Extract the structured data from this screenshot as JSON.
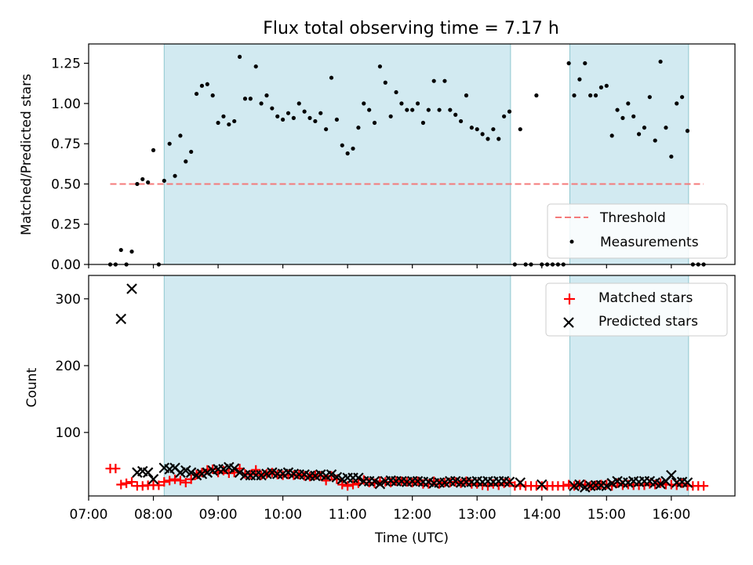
{
  "title": "Flux total observing time = 7.17 h",
  "colors": {
    "threshold": "#f47a7a",
    "shade": "#add8e6",
    "matched": "#ff0000",
    "predicted": "#000000",
    "measurement": "#000000"
  },
  "chart_data": [
    {
      "type": "scatter",
      "panel": "top",
      "ylabel": "Matched/Predicted stars",
      "ylim": [
        0,
        1.37
      ],
      "yticks": [
        "0.00",
        "0.25",
        "0.50",
        "0.75",
        "1.00",
        "1.25"
      ],
      "ytick_values": [
        0,
        0.25,
        0.5,
        0.75,
        1.0,
        1.25
      ],
      "xlim": [
        "07:00",
        "16:59"
      ],
      "shaded_intervals": [
        [
          "08:10",
          "13:31"
        ],
        [
          "14:26",
          "16:16"
        ]
      ],
      "legend": {
        "placement": "lower-right",
        "entries": [
          "Threshold",
          "Measurements"
        ]
      },
      "threshold": {
        "name": "Threshold",
        "value": 0.5,
        "x": [
          "07:20",
          "16:30"
        ]
      },
      "measurements": {
        "name": "Measurements",
        "x": [
          "07:20",
          "07:25",
          "07:30",
          "07:35",
          "07:40",
          "07:45",
          "07:50",
          "07:55",
          "08:00",
          "08:05",
          "08:10",
          "08:15",
          "08:20",
          "08:25",
          "08:30",
          "08:35",
          "08:40",
          "08:45",
          "08:50",
          "08:55",
          "09:00",
          "09:05",
          "09:10",
          "09:15",
          "09:20",
          "09:25",
          "09:30",
          "09:35",
          "09:40",
          "09:45",
          "09:50",
          "09:55",
          "10:00",
          "10:05",
          "10:10",
          "10:15",
          "10:20",
          "10:25",
          "10:30",
          "10:35",
          "10:40",
          "10:45",
          "10:50",
          "10:55",
          "11:00",
          "11:05",
          "11:10",
          "11:15",
          "11:20",
          "11:25",
          "11:30",
          "11:35",
          "11:40",
          "11:45",
          "11:50",
          "11:55",
          "12:00",
          "12:05",
          "12:10",
          "12:15",
          "12:20",
          "12:25",
          "12:30",
          "12:35",
          "12:40",
          "12:45",
          "12:50",
          "12:55",
          "13:00",
          "13:05",
          "13:10",
          "13:15",
          "13:20",
          "13:25",
          "13:30",
          "13:35",
          "13:40",
          "13:45",
          "13:50",
          "13:55",
          "14:00",
          "14:05",
          "14:10",
          "14:15",
          "14:20",
          "14:25",
          "14:30",
          "14:35",
          "14:40",
          "14:45",
          "14:50",
          "14:55",
          "15:00",
          "15:05",
          "15:10",
          "15:15",
          "15:20",
          "15:25",
          "15:30",
          "15:35",
          "15:40",
          "15:45",
          "15:50",
          "15:55",
          "16:00",
          "16:05",
          "16:10",
          "16:15",
          "16:20",
          "16:25",
          "16:30"
        ],
        "y": [
          0,
          0,
          0.09,
          0,
          0.08,
          0.5,
          0.53,
          0.51,
          0.71,
          0,
          0.52,
          0.75,
          0.55,
          0.8,
          0.64,
          0.7,
          1.06,
          1.11,
          1.12,
          1.05,
          0.88,
          0.92,
          0.87,
          0.89,
          1.29,
          1.03,
          1.03,
          1.23,
          1.0,
          1.05,
          0.97,
          0.92,
          0.9,
          0.94,
          0.91,
          1.0,
          0.95,
          0.91,
          0.89,
          0.94,
          0.84,
          1.16,
          0.9,
          0.74,
          0.69,
          0.72,
          0.85,
          1.0,
          0.96,
          0.88,
          1.23,
          1.13,
          0.92,
          1.07,
          1.0,
          0.96,
          0.96,
          1.0,
          0.88,
          0.96,
          1.14,
          0.96,
          1.14,
          0.96,
          0.93,
          0.89,
          1.05,
          0.85,
          0.84,
          0.81,
          0.78,
          0.84,
          0.78,
          0.92,
          0.95,
          0,
          0.84,
          0,
          0,
          1.05,
          0,
          0,
          0,
          0,
          0,
          1.25,
          1.05,
          1.15,
          1.25,
          1.05,
          1.05,
          1.1,
          1.11,
          0.8,
          0.96,
          0.91,
          1.0,
          0.92,
          0.81,
          0.85,
          1.04,
          0.77,
          1.26,
          0.85,
          0.67,
          1.0,
          1.04,
          0.83,
          0,
          0,
          0
        ]
      }
    },
    {
      "type": "scatter",
      "panel": "bottom",
      "xlabel": "Time (UTC)",
      "ylabel": "Count",
      "ylim": [
        5,
        335
      ],
      "yticks": [
        "100",
        "200",
        "300"
      ],
      "ytick_values": [
        100,
        200,
        300
      ],
      "xlim": [
        "07:00",
        "16:59"
      ],
      "xticks": [
        "07:00",
        "08:00",
        "09:00",
        "10:00",
        "11:00",
        "12:00",
        "13:00",
        "14:00",
        "15:00",
        "16:00"
      ],
      "shaded_intervals": [
        [
          "08:10",
          "13:31"
        ],
        [
          "14:26",
          "16:16"
        ]
      ],
      "legend": {
        "placement": "upper-right",
        "entries": [
          "Matched stars",
          "Predicted stars"
        ]
      },
      "series": [
        {
          "name": "Matched stars",
          "marker": "+",
          "x": [
            "07:20",
            "07:25",
            "07:30",
            "07:35",
            "07:40",
            "07:45",
            "07:50",
            "07:55",
            "08:00",
            "08:05",
            "08:10",
            "08:15",
            "08:20",
            "08:25",
            "08:30",
            "08:35",
            "08:40",
            "08:45",
            "08:50",
            "08:55",
            "09:00",
            "09:05",
            "09:10",
            "09:15",
            "09:20",
            "09:25",
            "09:30",
            "09:35",
            "09:40",
            "09:45",
            "09:50",
            "09:55",
            "10:00",
            "10:05",
            "10:10",
            "10:15",
            "10:20",
            "10:25",
            "10:30",
            "10:35",
            "10:40",
            "10:45",
            "10:50",
            "10:55",
            "11:00",
            "11:05",
            "11:10",
            "11:15",
            "11:20",
            "11:25",
            "11:30",
            "11:35",
            "11:40",
            "11:45",
            "11:50",
            "11:55",
            "12:00",
            "12:05",
            "12:10",
            "12:15",
            "12:20",
            "12:25",
            "12:30",
            "12:35",
            "12:40",
            "12:45",
            "12:50",
            "12:55",
            "13:00",
            "13:05",
            "13:10",
            "13:15",
            "13:20",
            "13:25",
            "13:30",
            "13:35",
            "13:40",
            "13:45",
            "13:50",
            "13:55",
            "14:00",
            "14:05",
            "14:10",
            "14:15",
            "14:20",
            "14:25",
            "14:30",
            "14:35",
            "14:40",
            "14:45",
            "14:50",
            "14:55",
            "15:00",
            "15:05",
            "15:10",
            "15:15",
            "15:20",
            "15:25",
            "15:30",
            "15:35",
            "15:40",
            "15:45",
            "15:50",
            "15:55",
            "16:00",
            "16:05",
            "16:10",
            "16:15",
            "16:20",
            "16:25",
            "16:30"
          ],
          "y": [
            46,
            46,
            22,
            24,
            26,
            20,
            20,
            21,
            21,
            21,
            26,
            28,
            30,
            28,
            25,
            30,
            37,
            40,
            44,
            45,
            40,
            43,
            39,
            40,
            46,
            38,
            37,
            44,
            36,
            38,
            40,
            37,
            36,
            37,
            36,
            37,
            35,
            34,
            36,
            35,
            28,
            35,
            30,
            22,
            20,
            22,
            24,
            29,
            25,
            24,
            27,
            26,
            25,
            27,
            27,
            26,
            25,
            27,
            23,
            23,
            27,
            23,
            25,
            25,
            26,
            24,
            27,
            23,
            23,
            21,
            20,
            23,
            21,
            24,
            25,
            20,
            21,
            20,
            20,
            20,
            20,
            20,
            20,
            20,
            20,
            22,
            20,
            22,
            22,
            20,
            21,
            22,
            22,
            20,
            24,
            21,
            22,
            21,
            21,
            21,
            23,
            22,
            24,
            22,
            22,
            21,
            24,
            20,
            20,
            20,
            20
          ]
        },
        {
          "name": "Predicted stars",
          "marker": "x",
          "x": [
            "07:30",
            "07:40",
            "07:45",
            "07:50",
            "07:55",
            "08:00",
            "08:10",
            "08:15",
            "08:20",
            "08:25",
            "08:30",
            "08:35",
            "08:40",
            "08:45",
            "08:50",
            "08:55",
            "09:00",
            "09:05",
            "09:10",
            "09:15",
            "09:20",
            "09:25",
            "09:30",
            "09:35",
            "09:40",
            "09:45",
            "09:50",
            "09:55",
            "10:00",
            "10:05",
            "10:10",
            "10:15",
            "10:20",
            "10:25",
            "10:30",
            "10:35",
            "10:40",
            "10:45",
            "10:50",
            "10:55",
            "11:00",
            "11:05",
            "11:10",
            "11:15",
            "11:20",
            "11:25",
            "11:30",
            "11:35",
            "11:40",
            "11:45",
            "11:50",
            "11:55",
            "12:00",
            "12:05",
            "12:10",
            "12:15",
            "12:20",
            "12:25",
            "12:30",
            "12:35",
            "12:40",
            "12:45",
            "12:50",
            "12:55",
            "13:00",
            "13:05",
            "13:10",
            "13:15",
            "13:20",
            "13:25",
            "13:30",
            "13:40",
            "14:00",
            "14:30",
            "14:35",
            "14:40",
            "14:45",
            "14:50",
            "14:55",
            "15:00",
            "15:05",
            "15:10",
            "15:15",
            "15:20",
            "15:25",
            "15:30",
            "15:35",
            "15:40",
            "15:45",
            "15:50",
            "15:55",
            "16:00",
            "16:05",
            "16:10",
            "16:15"
          ],
          "y": [
            270,
            315,
            40,
            42,
            40,
            30,
            47,
            45,
            47,
            40,
            43,
            40,
            36,
            38,
            40,
            43,
            45,
            45,
            48,
            46,
            40,
            36,
            36,
            36,
            36,
            38,
            40,
            38,
            38,
            40,
            38,
            37,
            37,
            35,
            35,
            37,
            35,
            37,
            33,
            30,
            32,
            32,
            32,
            27,
            27,
            27,
            23,
            27,
            28,
            27,
            27,
            26,
            27,
            27,
            26,
            26,
            24,
            25,
            25,
            27,
            27,
            25,
            26,
            26,
            27,
            26,
            27,
            26,
            27,
            27,
            26,
            25,
            22,
            20,
            22,
            18,
            20,
            21,
            21,
            20,
            24,
            27,
            25,
            25,
            27,
            26,
            27,
            27,
            25,
            23,
            27,
            36,
            25,
            26,
            25
          ]
        }
      ]
    }
  ]
}
